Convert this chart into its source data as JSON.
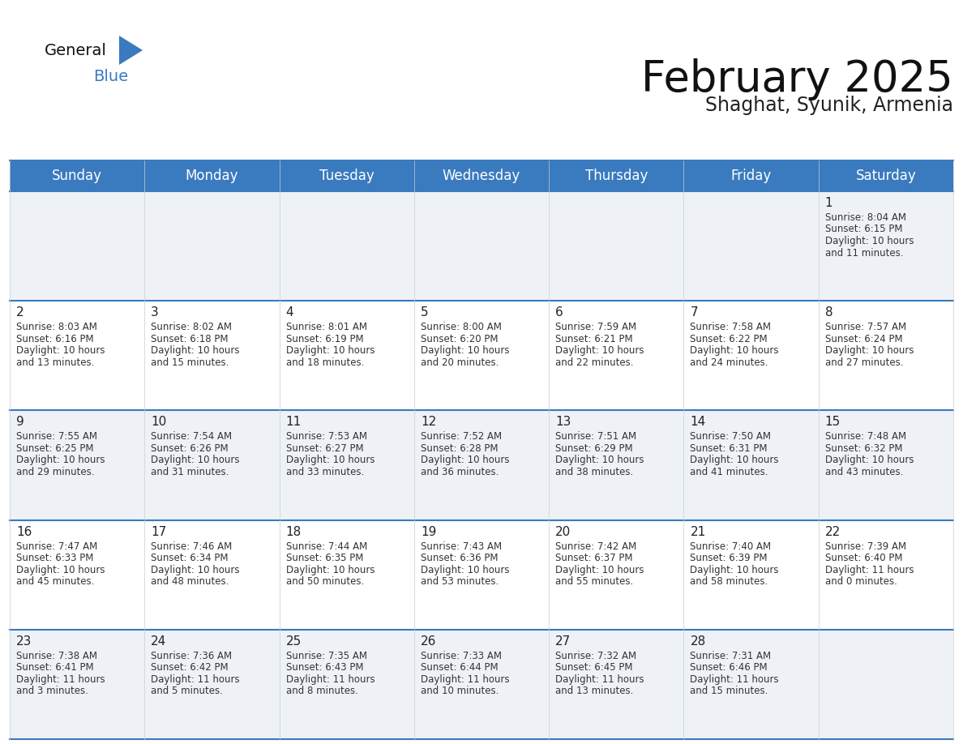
{
  "title": "February 2025",
  "subtitle": "Shaghat, Syunik, Armenia",
  "header_color": "#3a7abf",
  "header_text_color": "#ffffff",
  "row_colors": [
    "#eef2f7",
    "#ffffff",
    "#eef2f7",
    "#ffffff",
    "#eef2f7"
  ],
  "border_color": "#3a7abf",
  "day_headers": [
    "Sunday",
    "Monday",
    "Tuesday",
    "Wednesday",
    "Thursday",
    "Friday",
    "Saturday"
  ],
  "title_fontsize": 38,
  "subtitle_fontsize": 17,
  "header_fontsize": 12,
  "day_num_fontsize": 11,
  "cell_fontsize": 8.5,
  "days": [
    {
      "day": 1,
      "col": 6,
      "row": 0,
      "sunrise": "8:04 AM",
      "sunset": "6:15 PM",
      "daylight_h": "10 hours",
      "daylight_m": "and 11 minutes."
    },
    {
      "day": 2,
      "col": 0,
      "row": 1,
      "sunrise": "8:03 AM",
      "sunset": "6:16 PM",
      "daylight_h": "10 hours",
      "daylight_m": "and 13 minutes."
    },
    {
      "day": 3,
      "col": 1,
      "row": 1,
      "sunrise": "8:02 AM",
      "sunset": "6:18 PM",
      "daylight_h": "10 hours",
      "daylight_m": "and 15 minutes."
    },
    {
      "day": 4,
      "col": 2,
      "row": 1,
      "sunrise": "8:01 AM",
      "sunset": "6:19 PM",
      "daylight_h": "10 hours",
      "daylight_m": "and 18 minutes."
    },
    {
      "day": 5,
      "col": 3,
      "row": 1,
      "sunrise": "8:00 AM",
      "sunset": "6:20 PM",
      "daylight_h": "10 hours",
      "daylight_m": "and 20 minutes."
    },
    {
      "day": 6,
      "col": 4,
      "row": 1,
      "sunrise": "7:59 AM",
      "sunset": "6:21 PM",
      "daylight_h": "10 hours",
      "daylight_m": "and 22 minutes."
    },
    {
      "day": 7,
      "col": 5,
      "row": 1,
      "sunrise": "7:58 AM",
      "sunset": "6:22 PM",
      "daylight_h": "10 hours",
      "daylight_m": "and 24 minutes."
    },
    {
      "day": 8,
      "col": 6,
      "row": 1,
      "sunrise": "7:57 AM",
      "sunset": "6:24 PM",
      "daylight_h": "10 hours",
      "daylight_m": "and 27 minutes."
    },
    {
      "day": 9,
      "col": 0,
      "row": 2,
      "sunrise": "7:55 AM",
      "sunset": "6:25 PM",
      "daylight_h": "10 hours",
      "daylight_m": "and 29 minutes."
    },
    {
      "day": 10,
      "col": 1,
      "row": 2,
      "sunrise": "7:54 AM",
      "sunset": "6:26 PM",
      "daylight_h": "10 hours",
      "daylight_m": "and 31 minutes."
    },
    {
      "day": 11,
      "col": 2,
      "row": 2,
      "sunrise": "7:53 AM",
      "sunset": "6:27 PM",
      "daylight_h": "10 hours",
      "daylight_m": "and 33 minutes."
    },
    {
      "day": 12,
      "col": 3,
      "row": 2,
      "sunrise": "7:52 AM",
      "sunset": "6:28 PM",
      "daylight_h": "10 hours",
      "daylight_m": "and 36 minutes."
    },
    {
      "day": 13,
      "col": 4,
      "row": 2,
      "sunrise": "7:51 AM",
      "sunset": "6:29 PM",
      "daylight_h": "10 hours",
      "daylight_m": "and 38 minutes."
    },
    {
      "day": 14,
      "col": 5,
      "row": 2,
      "sunrise": "7:50 AM",
      "sunset": "6:31 PM",
      "daylight_h": "10 hours",
      "daylight_m": "and 41 minutes."
    },
    {
      "day": 15,
      "col": 6,
      "row": 2,
      "sunrise": "7:48 AM",
      "sunset": "6:32 PM",
      "daylight_h": "10 hours",
      "daylight_m": "and 43 minutes."
    },
    {
      "day": 16,
      "col": 0,
      "row": 3,
      "sunrise": "7:47 AM",
      "sunset": "6:33 PM",
      "daylight_h": "10 hours",
      "daylight_m": "and 45 minutes."
    },
    {
      "day": 17,
      "col": 1,
      "row": 3,
      "sunrise": "7:46 AM",
      "sunset": "6:34 PM",
      "daylight_h": "10 hours",
      "daylight_m": "and 48 minutes."
    },
    {
      "day": 18,
      "col": 2,
      "row": 3,
      "sunrise": "7:44 AM",
      "sunset": "6:35 PM",
      "daylight_h": "10 hours",
      "daylight_m": "and 50 minutes."
    },
    {
      "day": 19,
      "col": 3,
      "row": 3,
      "sunrise": "7:43 AM",
      "sunset": "6:36 PM",
      "daylight_h": "10 hours",
      "daylight_m": "and 53 minutes."
    },
    {
      "day": 20,
      "col": 4,
      "row": 3,
      "sunrise": "7:42 AM",
      "sunset": "6:37 PM",
      "daylight_h": "10 hours",
      "daylight_m": "and 55 minutes."
    },
    {
      "day": 21,
      "col": 5,
      "row": 3,
      "sunrise": "7:40 AM",
      "sunset": "6:39 PM",
      "daylight_h": "10 hours",
      "daylight_m": "and 58 minutes."
    },
    {
      "day": 22,
      "col": 6,
      "row": 3,
      "sunrise": "7:39 AM",
      "sunset": "6:40 PM",
      "daylight_h": "11 hours",
      "daylight_m": "and 0 minutes."
    },
    {
      "day": 23,
      "col": 0,
      "row": 4,
      "sunrise": "7:38 AM",
      "sunset": "6:41 PM",
      "daylight_h": "11 hours",
      "daylight_m": "and 3 minutes."
    },
    {
      "day": 24,
      "col": 1,
      "row": 4,
      "sunrise": "7:36 AM",
      "sunset": "6:42 PM",
      "daylight_h": "11 hours",
      "daylight_m": "and 5 minutes."
    },
    {
      "day": 25,
      "col": 2,
      "row": 4,
      "sunrise": "7:35 AM",
      "sunset": "6:43 PM",
      "daylight_h": "11 hours",
      "daylight_m": "and 8 minutes."
    },
    {
      "day": 26,
      "col": 3,
      "row": 4,
      "sunrise": "7:33 AM",
      "sunset": "6:44 PM",
      "daylight_h": "11 hours",
      "daylight_m": "and 10 minutes."
    },
    {
      "day": 27,
      "col": 4,
      "row": 4,
      "sunrise": "7:32 AM",
      "sunset": "6:45 PM",
      "daylight_h": "11 hours",
      "daylight_m": "and 13 minutes."
    },
    {
      "day": 28,
      "col": 5,
      "row": 4,
      "sunrise": "7:31 AM",
      "sunset": "6:46 PM",
      "daylight_h": "11 hours",
      "daylight_m": "and 15 minutes."
    }
  ]
}
